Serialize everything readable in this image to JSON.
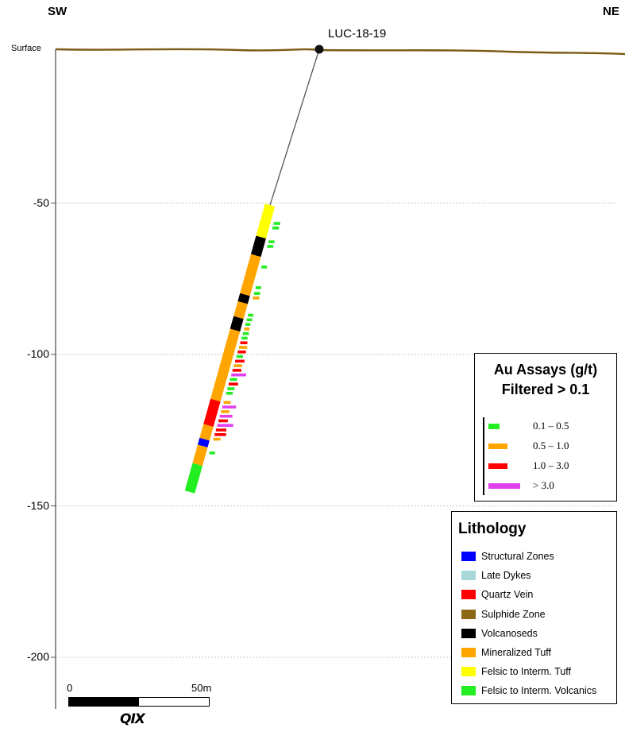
{
  "section": {
    "left_direction": "SW",
    "right_direction": "NE",
    "surface_label": "Surface",
    "hole_name": "LUC-18-19",
    "y_ticks": [
      {
        "value": -50,
        "label": "-50"
      },
      {
        "value": -100,
        "label": "-100"
      },
      {
        "value": -150,
        "label": "-150"
      },
      {
        "value": -200,
        "label": "-200"
      }
    ],
    "colors": {
      "surface": "#7a5a14",
      "gridline": "#c8c8c8",
      "trace": "#555555"
    }
  },
  "drillhole": {
    "lithology_intervals": [
      {
        "from": 0,
        "to": 14,
        "unit": "Felsic to Interm. Tuff"
      },
      {
        "from": 14,
        "to": 22,
        "unit": "Volcanoseds"
      },
      {
        "from": 22,
        "to": 39,
        "unit": "Mineralized Tuff"
      },
      {
        "from": 39,
        "to": 42.5,
        "unit": "Volcanoseds"
      },
      {
        "from": 42.5,
        "to": 49,
        "unit": "Mineralized Tuff"
      },
      {
        "from": 49,
        "to": 54.5,
        "unit": "Volcanoseds"
      },
      {
        "from": 54.5,
        "to": 85,
        "unit": "Mineralized Tuff"
      },
      {
        "from": 85,
        "to": 96,
        "unit": "Quartz Vein"
      },
      {
        "from": 96,
        "to": 102,
        "unit": "Mineralized Tuff"
      },
      {
        "from": 102,
        "to": 105,
        "unit": "Structural Zones"
      },
      {
        "from": 105,
        "to": 113,
        "unit": "Mineralized Tuff"
      },
      {
        "from": 113,
        "to": 125,
        "unit": "Felsic to Interm. Volcanics"
      }
    ],
    "assays": [
      {
        "depth": 8,
        "grade": "0.1 – 0.5",
        "length": 9
      },
      {
        "depth": 10,
        "grade": "0.1 – 0.5",
        "length": 9
      },
      {
        "depth": 16,
        "grade": "0.1 – 0.5",
        "length": 8
      },
      {
        "depth": 18,
        "grade": "0.1 – 0.5",
        "length": 8
      },
      {
        "depth": 27,
        "grade": "0.1 – 0.5",
        "length": 7
      },
      {
        "depth": 36,
        "grade": "0.1 – 0.5",
        "length": 7
      },
      {
        "depth": 38.5,
        "grade": "0.1 – 0.5",
        "length": 8
      },
      {
        "depth": 40.5,
        "grade": "0.5 – 1.0",
        "length": 9
      },
      {
        "depth": 48,
        "grade": "0.1 – 0.5",
        "length": 7
      },
      {
        "depth": 50,
        "grade": "0.1 – 0.5",
        "length": 7
      },
      {
        "depth": 52,
        "grade": "0.1 – 0.5",
        "length": 6
      },
      {
        "depth": 54,
        "grade": "0.5 – 1.0",
        "length": 7
      },
      {
        "depth": 56,
        "grade": "0.1 – 0.5",
        "length": 8
      },
      {
        "depth": 58,
        "grade": "0.1 – 0.5",
        "length": 8
      },
      {
        "depth": 60,
        "grade": "1.0 – 3.0",
        "length": 10
      },
      {
        "depth": 62,
        "grade": "0.5 – 1.0",
        "length": 12
      },
      {
        "depth": 64,
        "grade": "1.0 – 3.0",
        "length": 12
      },
      {
        "depth": 66,
        "grade": "0.1 – 0.5",
        "length": 9
      },
      {
        "depth": 68,
        "grade": "1.0 – 3.0",
        "length": 14
      },
      {
        "depth": 70,
        "grade": "0.5 – 1.0",
        "length": 12
      },
      {
        "depth": 72,
        "grade": "1.0 – 3.0",
        "length": 13
      },
      {
        "depth": 74,
        "grade": "> 3.0",
        "length": 24
      },
      {
        "depth": 76,
        "grade": "0.1 – 0.5",
        "length": 10
      },
      {
        "depth": 78,
        "grade": "1.0 – 3.0",
        "length": 14
      },
      {
        "depth": 80,
        "grade": "0.1 – 0.5",
        "length": 10
      },
      {
        "depth": 82,
        "grade": "0.1 – 0.5",
        "length": 9
      },
      {
        "depth": 86,
        "grade": "0.5 – 1.0",
        "length": 10
      },
      {
        "depth": 88,
        "grade": "> 3.0",
        "length": 22
      },
      {
        "depth": 90,
        "grade": "0.5 – 1.0",
        "length": 12
      },
      {
        "depth": 92,
        "grade": "> 3.0",
        "length": 20
      },
      {
        "depth": 94,
        "grade": "1.0 – 3.0",
        "length": 14
      },
      {
        "depth": 96,
        "grade": "> 3.0",
        "length": 26
      },
      {
        "depth": 98,
        "grade": "1.0 – 3.0",
        "length": 16
      },
      {
        "depth": 100,
        "grade": "1.0 – 3.0",
        "length": 18
      },
      {
        "depth": 102,
        "grade": "0.5 – 1.0",
        "length": 10
      },
      {
        "depth": 108,
        "grade": "0.1 – 0.5",
        "length": 7
      }
    ]
  },
  "assay_legend": {
    "title_line1": "Au Assays (g/t)",
    "title_line2": "Filtered > 0.1",
    "items": [
      {
        "label": "0.1 – 0.5",
        "color": "#22ee22"
      },
      {
        "label": "0.5 – 1.0",
        "color": "#ffa500"
      },
      {
        "label": "1.0 – 3.0",
        "color": "#ff0000"
      },
      {
        "label": "> 3.0",
        "color": "#e040ee"
      }
    ]
  },
  "lithology_legend": {
    "title": "Lithology",
    "items": [
      {
        "label": "Structural Zones",
        "color": "#0000ff"
      },
      {
        "label": "Late Dykes",
        "color": "#a8d8d8"
      },
      {
        "label": "Quartz Vein",
        "color": "#ff0000"
      },
      {
        "label": "Sulphide Zone",
        "color": "#8b6914"
      },
      {
        "label": "Volcanoseds",
        "color": "#000000"
      },
      {
        "label": "Mineralized Tuff",
        "color": "#ffa500"
      },
      {
        "label": "Felsic to Interm. Tuff",
        "color": "#ffff00"
      },
      {
        "label": "Felsic to Interm. Volcanics",
        "color": "#22ee22"
      }
    ]
  },
  "scale_bar": {
    "start_label": "0",
    "end_label": "50m"
  },
  "logo": {
    "text": "QIX"
  }
}
